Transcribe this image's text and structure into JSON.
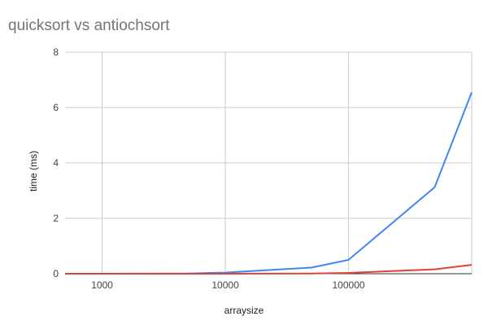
{
  "chart_data": {
    "type": "line",
    "title": "quicksort vs antiochsort",
    "xlabel": "arraysize",
    "ylabel": "time (ms)",
    "x_scale": "log",
    "xlim": [
      500,
      1000000
    ],
    "ylim": [
      0,
      8
    ],
    "x_ticks": [
      1000,
      10000,
      100000
    ],
    "x_tick_labels": [
      "1000",
      "10000",
      "100000"
    ],
    "y_ticks": [
      0,
      2,
      4,
      6,
      8
    ],
    "y_tick_labels": [
      "0",
      "2",
      "4",
      "6",
      "8"
    ],
    "grid": true,
    "legend": "none",
    "series": [
      {
        "color": "#4285f4",
        "x": [
          500,
          1000,
          5000,
          10000,
          50000,
          100000,
          500000,
          1000000
        ],
        "y": [
          0.0,
          0.0,
          0.01,
          0.04,
          0.22,
          0.5,
          3.12,
          6.55
        ]
      },
      {
        "color": "#db4437",
        "x": [
          500,
          1000,
          5000,
          10000,
          50000,
          100000,
          500000,
          1000000
        ],
        "y": [
          0.0,
          0.0,
          0.0,
          0.0,
          0.01,
          0.03,
          0.16,
          0.32
        ]
      }
    ]
  }
}
